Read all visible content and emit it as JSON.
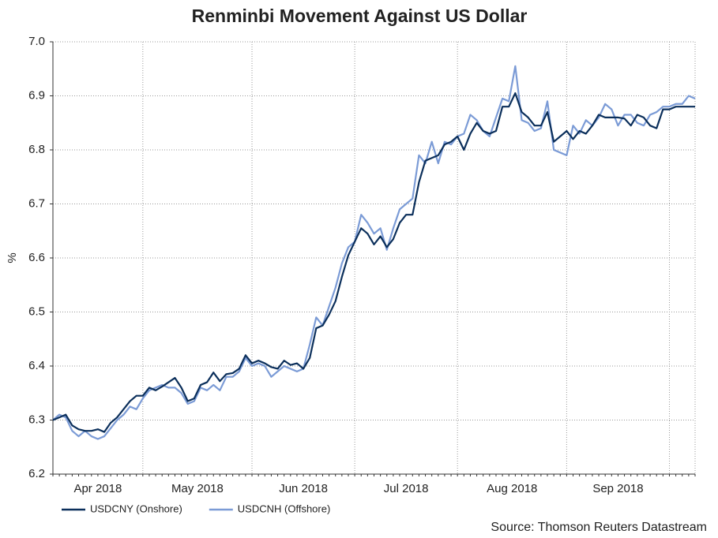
{
  "chart_data": {
    "type": "line",
    "title": "Renminbi Movement Against US Dollar",
    "ylabel": "%",
    "source": "Source: Thomson Reuters Datastream",
    "categories": [
      "Apr 2018",
      null,
      null,
      null,
      null,
      null,
      null,
      null,
      null,
      null,
      null,
      null,
      null,
      null,
      "May 2018",
      null,
      null,
      null,
      null,
      null,
      null,
      null,
      null,
      null,
      null,
      null,
      null,
      null,
      null,
      null,
      null,
      "Jun 2018",
      null,
      null,
      null,
      null,
      null,
      null,
      null,
      null,
      null,
      null,
      null,
      null,
      null,
      null,
      null,
      "Jul 2018",
      null,
      null,
      null,
      null,
      null,
      null,
      null,
      null,
      null,
      null,
      null,
      null,
      null,
      null,
      null,
      "Aug 2018",
      null,
      null,
      null,
      null,
      null,
      null,
      null,
      null,
      null,
      null,
      null,
      null,
      null,
      null,
      null,
      null,
      "Sep 2018",
      null,
      null,
      null,
      null,
      null,
      null,
      null,
      null,
      null,
      null,
      null,
      null,
      null,
      null,
      null,
      null,
      null,
      null,
      null,
      null
    ],
    "series": [
      {
        "name": "USDCNY (Onshore)",
        "color": "#0b2f5b",
        "values": [
          6.3,
          6.305,
          6.31,
          6.29,
          6.283,
          6.28,
          6.28,
          6.283,
          6.278,
          6.295,
          6.305,
          6.32,
          6.335,
          6.345,
          6.345,
          6.36,
          6.355,
          6.362,
          6.37,
          6.378,
          6.36,
          6.335,
          6.34,
          6.365,
          6.37,
          6.388,
          6.372,
          6.385,
          6.387,
          6.395,
          6.42,
          6.405,
          6.41,
          6.405,
          6.398,
          6.395,
          6.41,
          6.402,
          6.405,
          6.395,
          6.415,
          6.47,
          6.475,
          6.495,
          6.52,
          6.565,
          6.605,
          6.63,
          6.655,
          6.645,
          6.625,
          6.64,
          6.62,
          6.635,
          6.665,
          6.68,
          6.68,
          6.74,
          6.78,
          6.785,
          6.79,
          6.81,
          6.815,
          6.825,
          6.8,
          6.83,
          6.85,
          6.835,
          6.83,
          6.835,
          6.88,
          6.88,
          6.905,
          6.87,
          6.86,
          6.845,
          6.845,
          6.87,
          6.815,
          6.825,
          6.835,
          6.82,
          6.835,
          6.83,
          6.845,
          6.865,
          6.86,
          6.86,
          6.86,
          6.858,
          6.845,
          6.865,
          6.86,
          6.845,
          6.84,
          6.875,
          6.875,
          6.88,
          6.88,
          6.88,
          6.88
        ]
      },
      {
        "name": "USDCNH (Offshore)",
        "color": "#7b9bd6",
        "values": [
          6.3,
          6.31,
          6.305,
          6.28,
          6.27,
          6.28,
          6.27,
          6.265,
          6.27,
          6.285,
          6.3,
          6.31,
          6.325,
          6.32,
          6.34,
          6.355,
          6.36,
          6.365,
          6.36,
          6.36,
          6.35,
          6.33,
          6.335,
          6.36,
          6.355,
          6.365,
          6.355,
          6.38,
          6.38,
          6.39,
          6.415,
          6.4,
          6.405,
          6.4,
          6.38,
          6.39,
          6.4,
          6.395,
          6.39,
          6.395,
          6.44,
          6.49,
          6.475,
          6.51,
          6.545,
          6.59,
          6.62,
          6.63,
          6.68,
          6.665,
          6.645,
          6.655,
          6.615,
          6.655,
          6.69,
          6.7,
          6.71,
          6.79,
          6.775,
          6.815,
          6.775,
          6.815,
          6.81,
          6.825,
          6.83,
          6.865,
          6.855,
          6.835,
          6.825,
          6.86,
          6.895,
          6.89,
          6.955,
          6.855,
          6.85,
          6.835,
          6.84,
          6.89,
          6.8,
          6.795,
          6.79,
          6.845,
          6.83,
          6.855,
          6.845,
          6.86,
          6.885,
          6.875,
          6.845,
          6.865,
          6.865,
          6.85,
          6.845,
          6.865,
          6.87,
          6.88,
          6.88,
          6.885,
          6.885,
          6.9,
          6.895
        ]
      }
    ],
    "ylim": [
      6.2,
      7.0
    ],
    "yticks": [
      6.2,
      6.3,
      6.4,
      6.5,
      6.6,
      6.7,
      6.8,
      6.9,
      {
        "value": 7.0,
        "label": "7.0"
      }
    ],
    "grid": true,
    "legend": "bottom-left"
  }
}
